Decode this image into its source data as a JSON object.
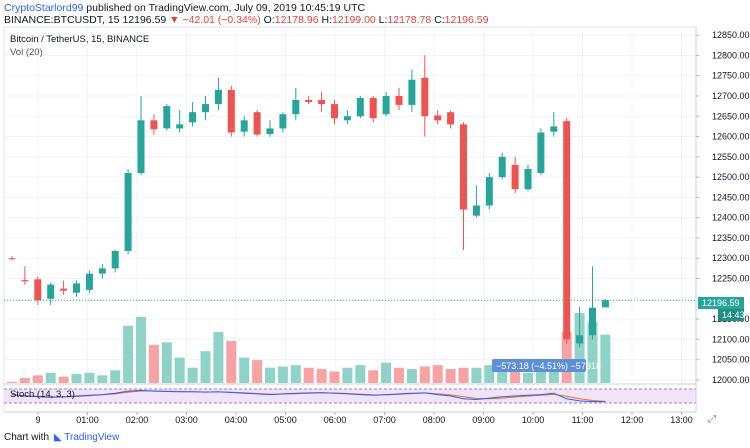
{
  "header": {
    "author": "CryptoStarlord99",
    "published_text": "published on TradingView.com, July 09, 2019 10:45:19 UTC",
    "symbol_line": "BINANCE:BTCUSDT, 15",
    "last": "12196.59",
    "change": "▼ −42.01 (−0.34%)",
    "o_label": "O:",
    "o": "12178.96",
    "h_label": "H:",
    "h": "12199.00",
    "l_label": "L:",
    "l": "12178.78",
    "c_label": "C:",
    "c": "12196.59"
  },
  "overlay": {
    "title": "Bitcoin / TetherUS, 15, BINANCE",
    "vol": "Vol (20)",
    "stoch": "Stoch (14, 3, 3)"
  },
  "price_axis": {
    "labels": [
      "12850.00",
      "12800.00",
      "12750.00",
      "12700.00",
      "12650.00",
      "12600.00",
      "12550.00",
      "12500.00",
      "12450.00",
      "12400.00",
      "12350.00",
      "12300.00",
      "12250.00",
      "12150.00",
      "12100.00",
      "12050.00",
      "12000.00"
    ],
    "current_price": "12196.59",
    "countdown": "14:43"
  },
  "time_axis": {
    "labels": [
      "9",
      "01:00",
      "02:00",
      "03:00",
      "04:00",
      "05:00",
      "06:00",
      "07:00",
      "08:00",
      "09:00",
      "10:00",
      "11:00",
      "12:00",
      "13:00"
    ]
  },
  "measure": {
    "text": "−573.18 (−4.51%) −57318"
  },
  "footer": {
    "made_with": "Chart with",
    "brand": "TradingView"
  },
  "colors": {
    "up": "#26a69a",
    "down": "#ef5350",
    "up_volume": "#8fd2c8",
    "down_volume": "#f7a3a3",
    "measure": "#5b8fd6",
    "stoch_band": "#d9c4f0"
  },
  "chart_data": {
    "type": "candlestick",
    "symbol": "BTCUSDT",
    "interval": "15",
    "ylim": [
      11990,
      12870
    ],
    "candles": [
      {
        "o": 12300,
        "h": 12305,
        "l": 12295,
        "c": 12298
      },
      {
        "o": 12246,
        "h": 12280,
        "l": 12235,
        "c": 12243
      },
      {
        "o": 12248,
        "h": 12255,
        "l": 12185,
        "c": 12196
      },
      {
        "o": 12200,
        "h": 12240,
        "l": 12185,
        "c": 12235
      },
      {
        "o": 12225,
        "h": 12245,
        "l": 12210,
        "c": 12220
      },
      {
        "o": 12215,
        "h": 12245,
        "l": 12205,
        "c": 12238
      },
      {
        "o": 12222,
        "h": 12270,
        "l": 12215,
        "c": 12262
      },
      {
        "o": 12262,
        "h": 12285,
        "l": 12250,
        "c": 12275
      },
      {
        "o": 12275,
        "h": 12320,
        "l": 12265,
        "c": 12318
      },
      {
        "o": 12318,
        "h": 12520,
        "l": 12310,
        "c": 12510
      },
      {
        "o": 12510,
        "h": 12700,
        "l": 12505,
        "c": 12640
      },
      {
        "o": 12640,
        "h": 12655,
        "l": 12605,
        "c": 12618
      },
      {
        "o": 12620,
        "h": 12680,
        "l": 12615,
        "c": 12675
      },
      {
        "o": 12620,
        "h": 12665,
        "l": 12610,
        "c": 12630
      },
      {
        "o": 12635,
        "h": 12685,
        "l": 12625,
        "c": 12660
      },
      {
        "o": 12660,
        "h": 12700,
        "l": 12640,
        "c": 12680
      },
      {
        "o": 12680,
        "h": 12745,
        "l": 12665,
        "c": 12715
      },
      {
        "o": 12715,
        "h": 12725,
        "l": 12600,
        "c": 12610
      },
      {
        "o": 12612,
        "h": 12650,
        "l": 12600,
        "c": 12640
      },
      {
        "o": 12660,
        "h": 12665,
        "l": 12600,
        "c": 12605
      },
      {
        "o": 12606,
        "h": 12640,
        "l": 12600,
        "c": 12620
      },
      {
        "o": 12620,
        "h": 12660,
        "l": 12610,
        "c": 12655
      },
      {
        "o": 12655,
        "h": 12720,
        "l": 12640,
        "c": 12690
      },
      {
        "o": 12690,
        "h": 12700,
        "l": 12680,
        "c": 12685
      },
      {
        "o": 12690,
        "h": 12710,
        "l": 12660,
        "c": 12680
      },
      {
        "o": 12680,
        "h": 12690,
        "l": 12630,
        "c": 12645
      },
      {
        "o": 12640,
        "h": 12665,
        "l": 12630,
        "c": 12650
      },
      {
        "o": 12650,
        "h": 12700,
        "l": 12645,
        "c": 12695
      },
      {
        "o": 12695,
        "h": 12700,
        "l": 12635,
        "c": 12645
      },
      {
        "o": 12655,
        "h": 12710,
        "l": 12650,
        "c": 12700
      },
      {
        "o": 12700,
        "h": 12720,
        "l": 12665,
        "c": 12678
      },
      {
        "o": 12678,
        "h": 12765,
        "l": 12660,
        "c": 12740
      },
      {
        "o": 12745,
        "h": 12800,
        "l": 12600,
        "c": 12650
      },
      {
        "o": 12652,
        "h": 12665,
        "l": 12630,
        "c": 12640
      },
      {
        "o": 12660,
        "h": 12665,
        "l": 12620,
        "c": 12630
      },
      {
        "o": 12630,
        "h": 12635,
        "l": 12320,
        "c": 12420
      },
      {
        "o": 12405,
        "h": 12480,
        "l": 12400,
        "c": 12430
      },
      {
        "o": 12430,
        "h": 12510,
        "l": 12420,
        "c": 12500
      },
      {
        "o": 12500,
        "h": 12560,
        "l": 12495,
        "c": 12550
      },
      {
        "o": 12530,
        "h": 12550,
        "l": 12460,
        "c": 12470
      },
      {
        "o": 12470,
        "h": 12530,
        "l": 12465,
        "c": 12520
      },
      {
        "o": 12510,
        "h": 12620,
        "l": 12505,
        "c": 12610
      },
      {
        "o": 12612,
        "h": 12660,
        "l": 12600,
        "c": 12625
      },
      {
        "o": 12638,
        "h": 12645,
        "l": 12090,
        "c": 12100
      },
      {
        "o": 12090,
        "h": 12180,
        "l": 12080,
        "c": 12110
      },
      {
        "o": 12110,
        "h": 12280,
        "l": 12100,
        "c": 12178
      },
      {
        "o": 12178.96,
        "h": 12199.0,
        "l": 12178.78,
        "c": 12196.59
      }
    ],
    "volume": [
      1,
      4,
      6,
      8,
      5,
      7,
      8,
      6,
      10,
      45,
      52,
      30,
      32,
      20,
      12,
      25,
      40,
      33,
      20,
      18,
      12,
      13,
      14,
      12,
      11,
      9,
      12,
      14,
      10,
      16,
      12,
      11,
      13,
      14,
      11,
      12,
      12,
      14,
      17,
      16,
      8,
      12,
      9,
      40,
      55,
      48,
      38
    ],
    "stoch_k": [
      60,
      50,
      45,
      40,
      45,
      50,
      55,
      60,
      70,
      85,
      90,
      85,
      82,
      80,
      80,
      78,
      80,
      75,
      70,
      65,
      60,
      65,
      70,
      72,
      74,
      70,
      65,
      60,
      55,
      60,
      65,
      70,
      72,
      60,
      50,
      30,
      25,
      35,
      45,
      50,
      55,
      60,
      70,
      30,
      15,
      10,
      10
    ],
    "stoch_d": [
      58,
      52,
      48,
      44,
      44,
      46,
      52,
      58,
      65,
      78,
      86,
      87,
      84,
      81,
      80,
      79,
      79,
      77,
      73,
      68,
      63,
      63,
      66,
      70,
      72,
      71,
      68,
      63,
      58,
      58,
      62,
      67,
      71,
      66,
      58,
      45,
      32,
      30,
      35,
      43,
      50,
      55,
      62,
      48,
      30,
      18,
      12
    ]
  }
}
